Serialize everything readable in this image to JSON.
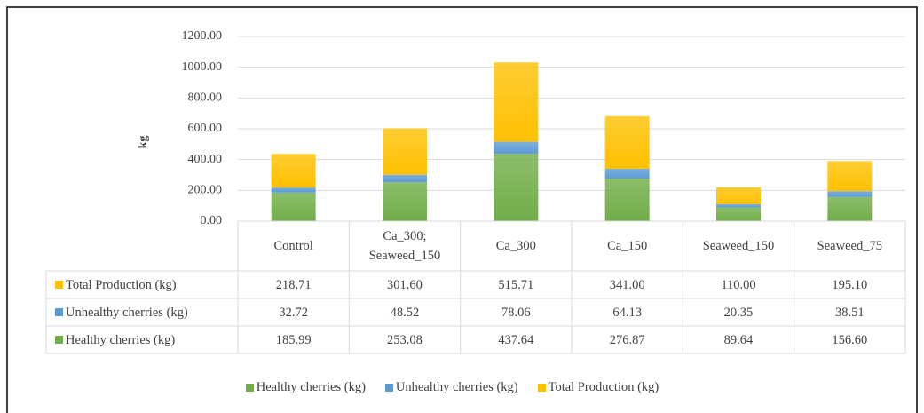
{
  "chart_data": {
    "type": "stacked_bar",
    "y_label": "kg",
    "categories": [
      "Control",
      "Ca_300; Seaweed_150",
      "Ca_300",
      "Ca_150",
      "Seaweed_150",
      "Seaweed_75"
    ],
    "series": [
      {
        "name": "Healthy cherries (kg)",
        "color": "#70ad47",
        "values": [
          185.99,
          253.08,
          437.64,
          276.87,
          89.64,
          156.6
        ],
        "value_labels": [
          "185.99",
          "253.08",
          "437.64",
          "276.87",
          "89.64",
          "156.60"
        ]
      },
      {
        "name": "Unhealthy cherries (kg)",
        "color": "#5b9bd5",
        "values": [
          32.72,
          48.52,
          78.06,
          64.13,
          20.35,
          38.51
        ],
        "value_labels": [
          "32.72",
          "48.52",
          "78.06",
          "64.13",
          "20.35",
          "38.51"
        ]
      },
      {
        "name": "Total Production (kg)",
        "color": "#ffc000",
        "values": [
          218.71,
          301.6,
          515.71,
          341,
          110,
          195.1
        ],
        "value_labels": [
          "218.71",
          "301.60",
          "515.71",
          "341.00",
          "110.00",
          "195.10"
        ]
      }
    ],
    "ylim": [
      0,
      1200
    ],
    "yticks": [
      {
        "value": 0,
        "label": "0.00"
      },
      {
        "value": 200,
        "label": "200.00"
      },
      {
        "value": 400,
        "label": "400.00"
      },
      {
        "value": 600,
        "label": "600.00"
      },
      {
        "value": 800,
        "label": "800.00"
      },
      {
        "value": 1000,
        "label": "1000.00"
      },
      {
        "value": 1200,
        "label": "1200.00"
      }
    ],
    "grid": true,
    "legend": "bottom"
  }
}
